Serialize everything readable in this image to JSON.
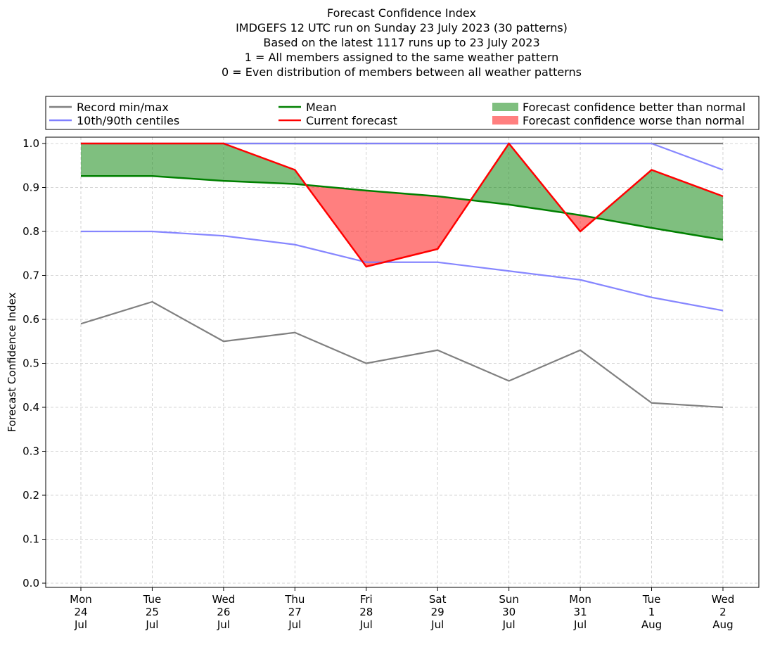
{
  "chart_data": {
    "type": "line",
    "title_lines": [
      "Forecast Confidence Index",
      "IMDGEFS 12 UTC run on Sunday 23 July 2023 (30 patterns)",
      "Based on the latest 1117 runs up to 23 July 2023",
      "1 = All members assigned to the same weather pattern",
      "0 = Even distribution of members between all weather patterns"
    ],
    "ylabel": "Forecast Confidence Index",
    "xlabel": "",
    "ylim": [
      0,
      1.0
    ],
    "yticks": [
      "0.0",
      "0.1",
      "0.2",
      "0.3",
      "0.4",
      "0.5",
      "0.6",
      "0.7",
      "0.8",
      "0.9",
      "1.0"
    ],
    "grid": true,
    "legend_placement": "top (above plot)",
    "categories": [
      [
        "Mon",
        "24",
        "Jul"
      ],
      [
        "Tue",
        "25",
        "Jul"
      ],
      [
        "Wed",
        "26",
        "Jul"
      ],
      [
        "Thu",
        "27",
        "Jul"
      ],
      [
        "Fri",
        "28",
        "Jul"
      ],
      [
        "Sat",
        "29",
        "Jul"
      ],
      [
        "Sun",
        "30",
        "Jul"
      ],
      [
        "Mon",
        "31",
        "Jul"
      ],
      [
        "Tue",
        "1",
        "Aug"
      ],
      [
        "Wed",
        "2",
        "Aug"
      ]
    ],
    "series": [
      {
        "name": "Record min/max",
        "key": "record_min",
        "color": "#808080",
        "values": [
          0.59,
          0.64,
          0.55,
          0.57,
          0.5,
          0.53,
          0.46,
          0.53,
          0.41,
          0.4
        ]
      },
      {
        "name": "Record min/max",
        "key": "record_max",
        "color": "#808080",
        "values": [
          1.0,
          1.0,
          1.0,
          1.0,
          1.0,
          1.0,
          1.0,
          1.0,
          1.0,
          1.0
        ]
      },
      {
        "name": "10th/90th centiles",
        "key": "p10",
        "color": "#8080ff",
        "values": [
          0.8,
          0.8,
          0.79,
          0.77,
          0.73,
          0.73,
          0.71,
          0.69,
          0.65,
          0.62
        ]
      },
      {
        "name": "10th/90th centiles",
        "key": "p90",
        "color": "#8080ff",
        "values": [
          1.0,
          1.0,
          1.0,
          1.0,
          1.0,
          1.0,
          1.0,
          1.0,
          1.0,
          0.94
        ]
      },
      {
        "name": "Mean",
        "key": "mean",
        "color": "#008000",
        "values": [
          0.926,
          0.926,
          0.915,
          0.908,
          0.893,
          0.88,
          0.861,
          0.837,
          0.808,
          0.781
        ]
      },
      {
        "name": "Current forecast",
        "key": "current",
        "color": "#ff0000",
        "values": [
          1.0,
          1.0,
          1.0,
          0.94,
          0.72,
          0.76,
          1.0,
          0.8,
          0.94,
          0.88
        ]
      }
    ],
    "fills": {
      "better": {
        "name": "Forecast confidence better than normal",
        "color": "#008000",
        "alpha": 0.5
      },
      "worse": {
        "name": "Forecast confidence worse than normal",
        "color": "#ff0000",
        "alpha": 0.5
      }
    }
  }
}
